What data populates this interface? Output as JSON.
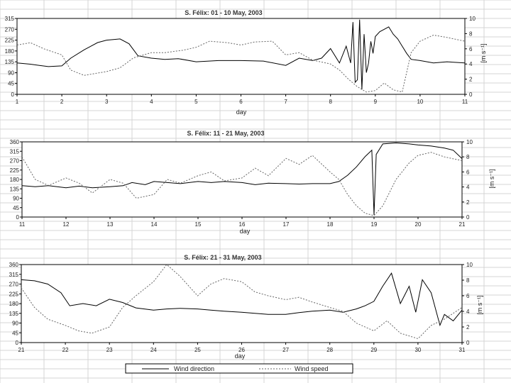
{
  "chart_data": [
    {
      "type": "line",
      "title": "S. Félix: 01 - 10 May, 2003",
      "xlabel": "day",
      "ylabel_right": "[m s⁻¹]",
      "x_ticks": [
        "1",
        "2",
        "3",
        "4",
        "5",
        "6",
        "7",
        "8",
        "9",
        "10",
        "11"
      ],
      "left_ticks": [
        "0",
        "45",
        "90",
        "135",
        "180",
        "225",
        "270",
        "315"
      ],
      "right_ticks": [
        "0",
        "2",
        "4",
        "6",
        "8",
        "10"
      ],
      "xlim": [
        1,
        11
      ],
      "ylim_left": [
        0,
        315
      ],
      "ylim_right": [
        0,
        10
      ],
      "grid": false,
      "series": [
        {
          "name": "Wind direction",
          "axis": "left",
          "style": "solid",
          "x": [
            1,
            1.3,
            1.5,
            1.7,
            2,
            2.2,
            2.5,
            2.8,
            3.0,
            3.3,
            3.5,
            3.7,
            4,
            4.3,
            4.6,
            5,
            5.5,
            6,
            6.5,
            7,
            7.3,
            7.6,
            7.8,
            8,
            8.2,
            8.35,
            8.45,
            8.5,
            8.55,
            8.6,
            8.65,
            8.7,
            8.75,
            8.8,
            8.85,
            8.9,
            8.95,
            9.0,
            9.1,
            9.2,
            9.3,
            9.4,
            9.5,
            9.6,
            9.7,
            9.8,
            10,
            10.3,
            10.6,
            11
          ],
          "y": [
            130,
            125,
            120,
            115,
            118,
            150,
            185,
            215,
            225,
            230,
            210,
            160,
            150,
            145,
            148,
            135,
            140,
            140,
            138,
            120,
            150,
            140,
            150,
            190,
            130,
            200,
            130,
            300,
            50,
            60,
            310,
            20,
            250,
            90,
            130,
            220,
            170,
            240,
            260,
            270,
            280,
            250,
            230,
            200,
            170,
            145,
            140,
            130,
            135,
            130
          ]
        },
        {
          "name": "Wind speed",
          "axis": "right",
          "style": "dashed",
          "x": [
            1,
            1.3,
            1.6,
            2,
            2.2,
            2.5,
            2.8,
            3,
            3.3,
            3.6,
            4,
            4.3,
            4.7,
            5,
            5.3,
            5.7,
            6,
            6.3,
            6.7,
            7,
            7.3,
            7.6,
            8,
            8.2,
            8.4,
            8.6,
            8.8,
            9,
            9.2,
            9.4,
            9.6,
            9.8,
            10,
            10.3,
            10.6,
            11
          ],
          "y": [
            6.5,
            6.8,
            6.0,
            5.2,
            3.2,
            2.5,
            2.8,
            3.0,
            3.5,
            4.8,
            5.5,
            5.5,
            5.8,
            6.2,
            7.0,
            6.8,
            6.5,
            6.9,
            7.0,
            5.2,
            5.5,
            4.5,
            4.0,
            3.2,
            2.0,
            1.0,
            0.3,
            0.5,
            1.5,
            0.6,
            0.3,
            5.5,
            7.0,
            7.8,
            7.5,
            7.0
          ]
        }
      ]
    },
    {
      "type": "line",
      "title": "S. Félix: 11 - 21 May, 2003",
      "xlabel": "day",
      "ylabel_right": "[m s⁻¹]",
      "x_ticks": [
        "11",
        "12",
        "13",
        "14",
        "15",
        "16",
        "17",
        "18",
        "19",
        "20",
        "21"
      ],
      "left_ticks": [
        "0",
        "45",
        "90",
        "135",
        "180",
        "225",
        "270",
        "315",
        "360"
      ],
      "right_ticks": [
        "0",
        "2",
        "4",
        "6",
        "8",
        "10"
      ],
      "xlim": [
        11,
        21
      ],
      "ylim_left": [
        0,
        360
      ],
      "ylim_right": [
        0,
        10
      ],
      "grid": false,
      "series": [
        {
          "name": "Wind direction",
          "axis": "left",
          "style": "solid",
          "x": [
            11,
            11.3,
            11.6,
            12,
            12.3,
            12.6,
            13,
            13.3,
            13.5,
            13.8,
            14,
            14.3,
            14.6,
            15,
            15.3,
            15.6,
            16,
            16.3,
            16.6,
            17,
            17.3,
            17.6,
            18,
            18.2,
            18.4,
            18.6,
            18.8,
            18.95,
            19.0,
            19.05,
            19.2,
            19.5,
            19.8,
            20,
            20.3,
            20.6,
            20.8,
            21
          ],
          "y": [
            150,
            145,
            150,
            140,
            148,
            140,
            145,
            150,
            165,
            155,
            170,
            165,
            160,
            170,
            165,
            170,
            165,
            155,
            162,
            160,
            158,
            160,
            160,
            170,
            200,
            240,
            290,
            320,
            10,
            300,
            350,
            355,
            350,
            345,
            340,
            330,
            320,
            280
          ]
        },
        {
          "name": "Wind speed",
          "axis": "right",
          "style": "dashed",
          "x": [
            11,
            11.3,
            11.6,
            12,
            12.3,
            12.6,
            13,
            13.3,
            13.6,
            14,
            14.3,
            14.6,
            15,
            15.3,
            15.6,
            16,
            16.3,
            16.6,
            17,
            17.3,
            17.6,
            18,
            18.2,
            18.4,
            18.6,
            18.8,
            19,
            19.2,
            19.5,
            19.8,
            20,
            20.3,
            20.6,
            21
          ],
          "y": [
            8.0,
            5.0,
            4.2,
            5.2,
            4.5,
            3.2,
            5.0,
            4.5,
            2.5,
            3.0,
            5.0,
            4.5,
            5.5,
            6.0,
            4.8,
            5.2,
            6.5,
            5.5,
            7.8,
            7.0,
            8.2,
            6.0,
            5.0,
            3.0,
            1.5,
            0.5,
            0.2,
            1.5,
            5.0,
            7.2,
            8.2,
            8.6,
            8.0,
            7.5
          ]
        }
      ]
    },
    {
      "type": "line",
      "title": "S. Félix: 21 - 31 May, 2003",
      "xlabel": "day",
      "ylabel_right": "[m s⁻¹]",
      "x_ticks": [
        "21",
        "22",
        "23",
        "24",
        "25",
        "26",
        "27",
        "28",
        "29",
        "30",
        "31"
      ],
      "left_ticks": [
        "0",
        "45",
        "90",
        "135",
        "180",
        "225",
        "270",
        "315",
        "360"
      ],
      "right_ticks": [
        "0",
        "2",
        "4",
        "6",
        "8",
        "10"
      ],
      "xlim": [
        21,
        31
      ],
      "ylim_left": [
        0,
        360
      ],
      "ylim_right": [
        0,
        10
      ],
      "grid": false,
      "series": [
        {
          "name": "Wind direction",
          "axis": "left",
          "style": "solid",
          "x": [
            21,
            21.3,
            21.6,
            21.9,
            22.1,
            22.4,
            22.7,
            23,
            23.3,
            23.6,
            24,
            24.3,
            24.6,
            25,
            25.3,
            25.6,
            26,
            26.3,
            26.6,
            27,
            27.3,
            27.6,
            28,
            28.3,
            28.6,
            28.8,
            29.0,
            29.2,
            29.4,
            29.6,
            29.8,
            29.95,
            30.1,
            30.3,
            30.5,
            30.6,
            30.8,
            31
          ],
          "y": [
            290,
            285,
            270,
            230,
            170,
            180,
            170,
            200,
            185,
            160,
            150,
            155,
            158,
            155,
            150,
            145,
            140,
            135,
            130,
            130,
            138,
            145,
            150,
            140,
            155,
            170,
            190,
            260,
            320,
            180,
            260,
            140,
            290,
            230,
            80,
            130,
            100,
            150
          ]
        },
        {
          "name": "Wind speed",
          "axis": "right",
          "style": "dashed",
          "x": [
            21,
            21.3,
            21.6,
            22,
            22.3,
            22.6,
            23,
            23.3,
            23.6,
            24,
            24.3,
            24.6,
            25,
            25.3,
            25.6,
            26,
            26.3,
            26.6,
            27,
            27.3,
            27.6,
            28,
            28.3,
            28.6,
            29,
            29.3,
            29.6,
            30,
            30.3,
            30.6,
            31
          ],
          "y": [
            7.0,
            4.5,
            3.0,
            2.2,
            1.5,
            1.2,
            2.0,
            4.5,
            6.0,
            7.8,
            10.0,
            8.5,
            6.0,
            7.5,
            8.2,
            7.8,
            6.5,
            6.0,
            5.5,
            5.8,
            5.2,
            4.5,
            4.0,
            2.5,
            1.5,
            2.8,
            1.2,
            0.5,
            2.2,
            3.0,
            4.5
          ]
        }
      ]
    }
  ],
  "legend": {
    "direction_label": "Wind direction",
    "speed_label": "Wind speed"
  }
}
